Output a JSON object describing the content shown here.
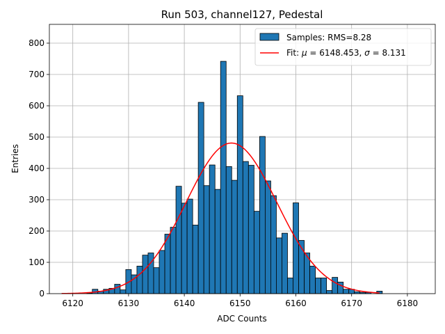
{
  "chart_data": {
    "type": "bar",
    "title": "Run 503, channel127, Pedestal",
    "xlabel": "ADC Counts",
    "ylabel": "Entries",
    "xlim": [
      6115.8,
      6185
    ],
    "ylim": [
      0,
      860
    ],
    "xticks": [
      6120,
      6130,
      6140,
      6150,
      6160,
      6170,
      6180
    ],
    "yticks": [
      0,
      100,
      200,
      300,
      400,
      500,
      600,
      700,
      800
    ],
    "grid": true,
    "legend_position": "top-right",
    "colors": {
      "bars": "#1f77b4",
      "bar_edge": "#000000",
      "fit": "#ff0000",
      "grid": "#b0b0b0"
    },
    "histogram": {
      "name": "Samples: RMS=8.28",
      "bin_width": 1,
      "bins": [
        [
          6123,
          2
        ],
        [
          6124,
          14
        ],
        [
          6125,
          8
        ],
        [
          6126,
          14
        ],
        [
          6127,
          17
        ],
        [
          6128,
          30
        ],
        [
          6129,
          12
        ],
        [
          6130,
          77
        ],
        [
          6131,
          60
        ],
        [
          6132,
          88
        ],
        [
          6133,
          123
        ],
        [
          6134,
          130
        ],
        [
          6135,
          83
        ],
        [
          6136,
          138
        ],
        [
          6137,
          190
        ],
        [
          6138,
          212
        ],
        [
          6139,
          343
        ],
        [
          6140,
          289
        ],
        [
          6141,
          302
        ],
        [
          6142,
          219
        ],
        [
          6143,
          611
        ],
        [
          6144,
          345
        ],
        [
          6145,
          411
        ],
        [
          6146,
          333
        ],
        [
          6147,
          742
        ],
        [
          6148,
          406
        ],
        [
          6149,
          362
        ],
        [
          6150,
          632
        ],
        [
          6151,
          422
        ],
        [
          6152,
          410
        ],
        [
          6153,
          263
        ],
        [
          6154,
          502
        ],
        [
          6155,
          360
        ],
        [
          6156,
          313
        ],
        [
          6157,
          178
        ],
        [
          6158,
          193
        ],
        [
          6159,
          50
        ],
        [
          6160,
          290
        ],
        [
          6161,
          170
        ],
        [
          6162,
          130
        ],
        [
          6163,
          88
        ],
        [
          6164,
          50
        ],
        [
          6165,
          50
        ],
        [
          6166,
          10
        ],
        [
          6167,
          52
        ],
        [
          6168,
          37
        ],
        [
          6169,
          14
        ],
        [
          6170,
          14
        ],
        [
          6171,
          6
        ],
        [
          6172,
          4
        ],
        [
          6173,
          4
        ],
        [
          6175,
          8
        ]
      ]
    },
    "fit": {
      "name": "Fit: μ = 6148.453, σ = 8.131",
      "name_parts": {
        "prefix": "Fit: ",
        "mu": "μ",
        "mid": " = 6148.453, ",
        "sigma": "σ",
        "suffix": " = 8.131"
      },
      "mu": 6148.453,
      "sigma": 8.131,
      "amplitude": 481,
      "x_range": [
        6118,
        6175
      ]
    }
  }
}
